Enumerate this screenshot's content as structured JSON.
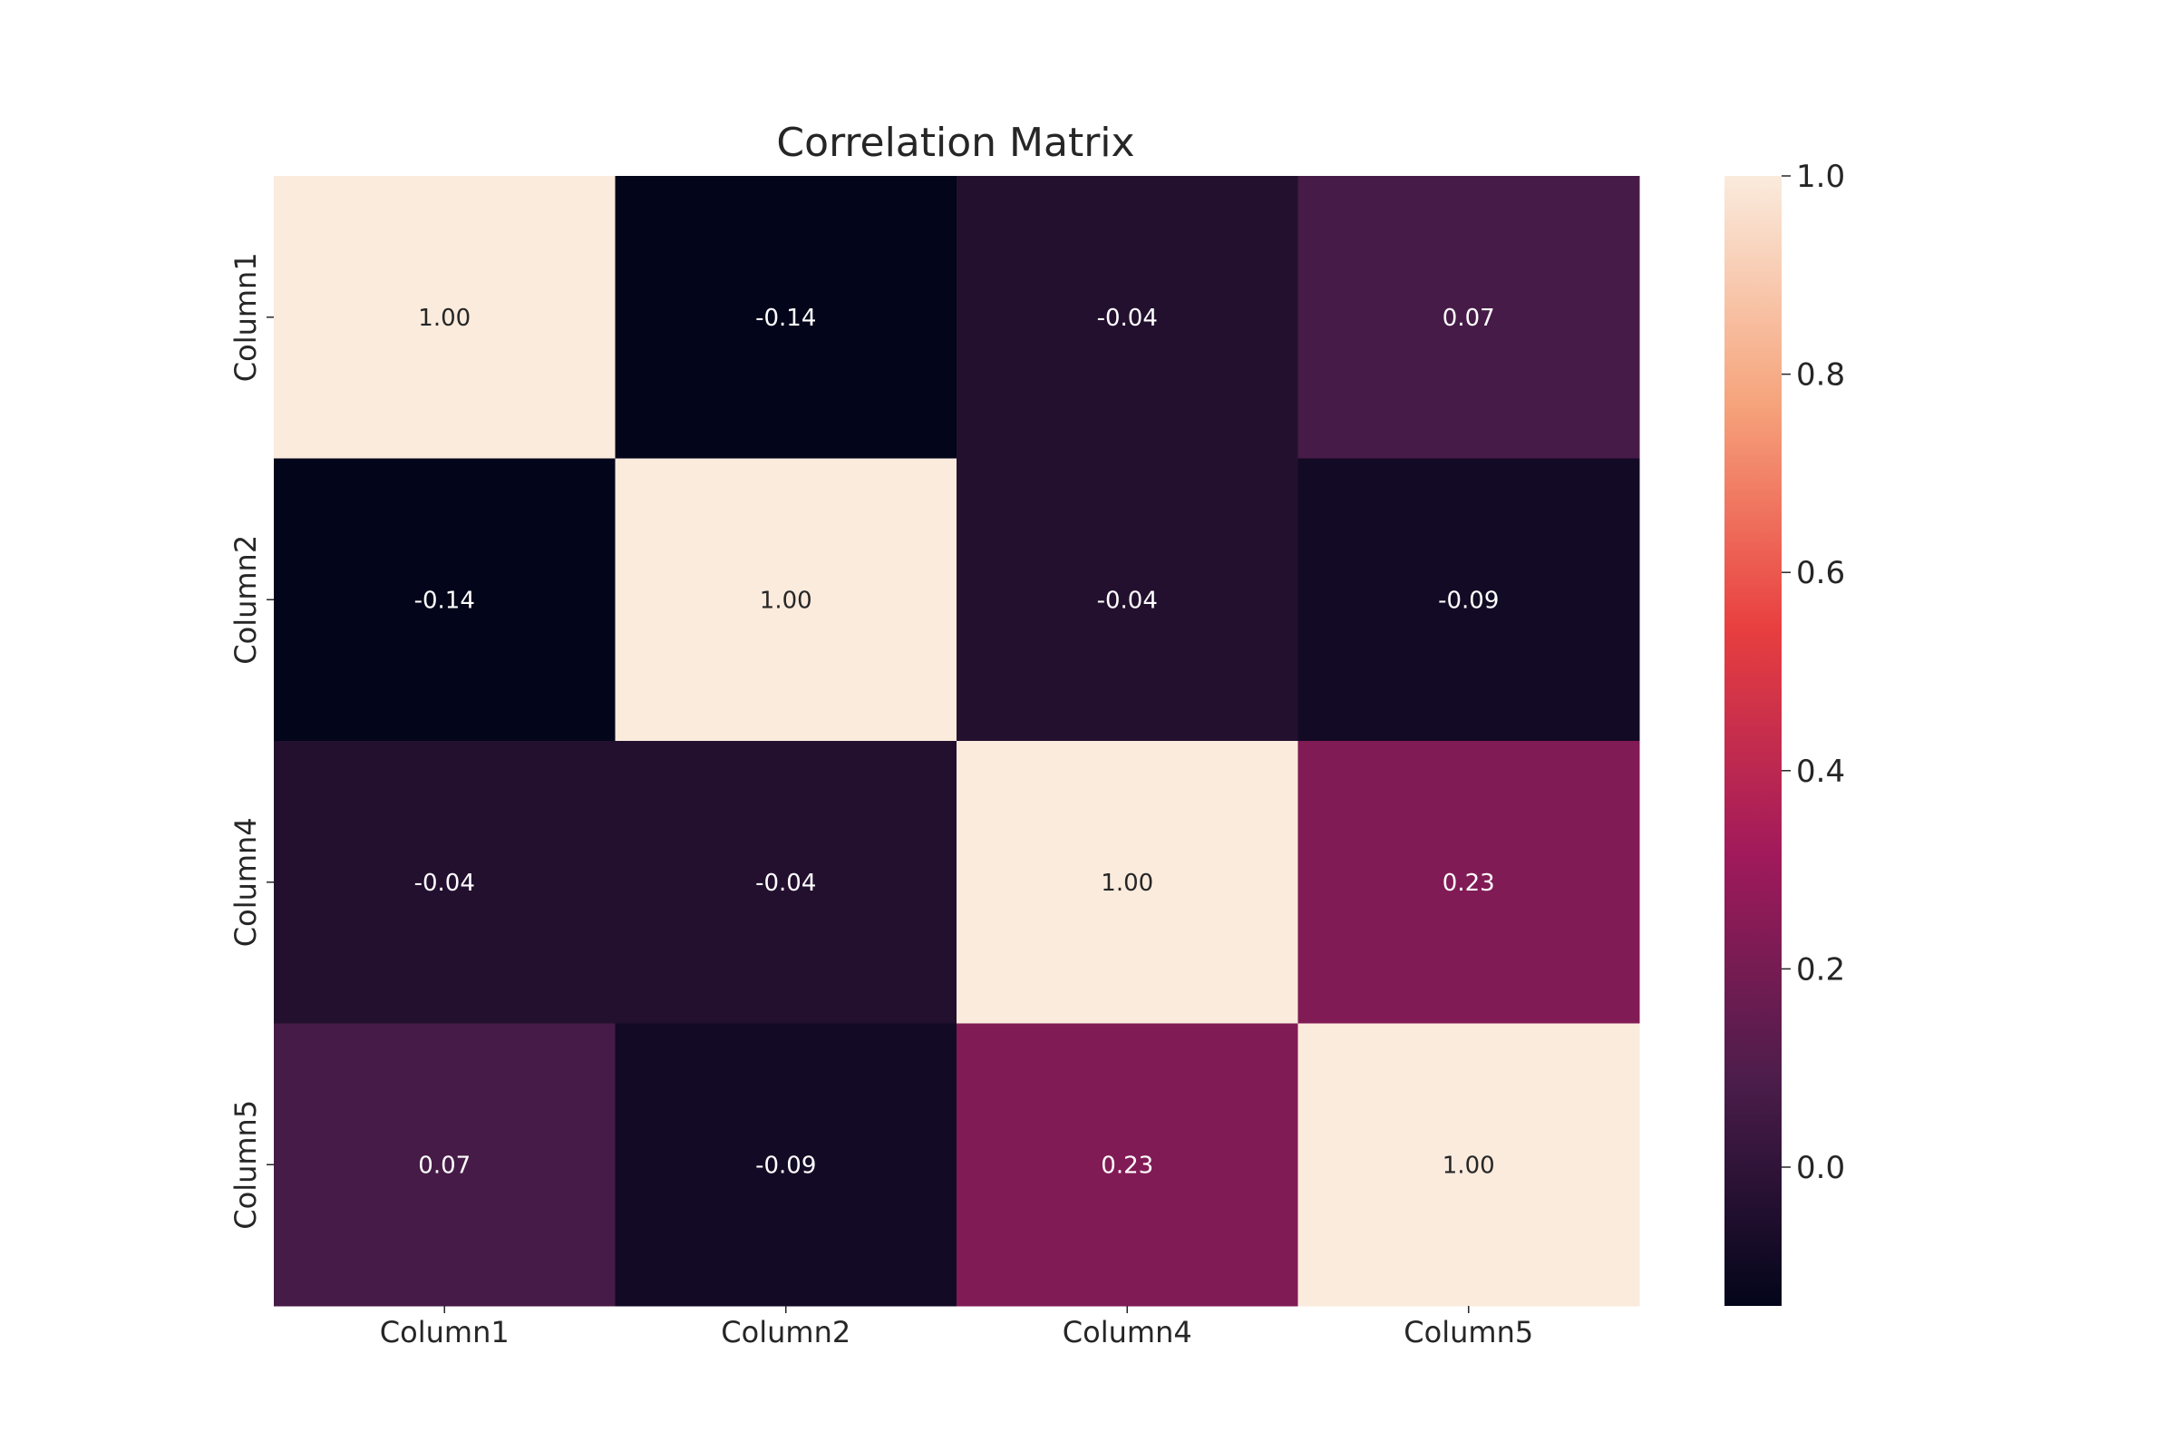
{
  "chart_data": {
    "type": "heatmap",
    "title": "Correlation Matrix",
    "xlabel": "",
    "ylabel": "",
    "x_categories": [
      "Column1",
      "Column2",
      "Column4",
      "Column5"
    ],
    "y_categories": [
      "Column1",
      "Column2",
      "Column4",
      "Column5"
    ],
    "values": [
      [
        1.0,
        -0.14,
        -0.04,
        0.07
      ],
      [
        -0.14,
        1.0,
        -0.04,
        -0.09
      ],
      [
        -0.04,
        -0.04,
        1.0,
        0.23
      ],
      [
        0.07,
        -0.09,
        0.23,
        1.0
      ]
    ],
    "cell_labels": [
      [
        "1.00",
        "-0.14",
        "-0.04",
        "0.07"
      ],
      [
        "-0.14",
        "1.00",
        "-0.04",
        "-0.09"
      ],
      [
        "-0.04",
        "-0.04",
        "1.00",
        "0.23"
      ],
      [
        "0.07",
        "-0.09",
        "0.23",
        "1.00"
      ]
    ],
    "colorbar": {
      "vmin": -0.14,
      "vmax": 1.0,
      "ticks": [
        0.0,
        0.2,
        0.4,
        0.6,
        0.8,
        1.0
      ],
      "tick_labels": [
        "0.0",
        "0.2",
        "0.4",
        "0.6",
        "0.8",
        "1.0"
      ],
      "colormap": "rocket",
      "stops": [
        "#03051a",
        "#4c1d4b",
        "#a11a5b",
        "#e83f3f",
        "#f6a47c",
        "#faebdd"
      ]
    },
    "annot_light_text_color": "#ffffff",
    "annot_dark_text_color": "#262626"
  }
}
